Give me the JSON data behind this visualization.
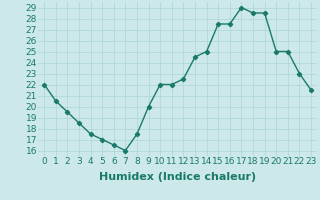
{
  "x": [
    0,
    1,
    2,
    3,
    4,
    5,
    6,
    7,
    8,
    9,
    10,
    11,
    12,
    13,
    14,
    15,
    16,
    17,
    18,
    19,
    20,
    21,
    22,
    23
  ],
  "y": [
    22,
    20.5,
    19.5,
    18.5,
    17.5,
    17.0,
    16.5,
    16.0,
    17.5,
    20.0,
    22.0,
    22.0,
    22.5,
    24.5,
    25.0,
    27.5,
    27.5,
    29.0,
    28.5,
    28.5,
    25.0,
    25.0,
    23.0,
    21.5
  ],
  "line_color": "#1a7a6a",
  "marker": "D",
  "marker_size": 2.2,
  "line_width": 1.0,
  "xlabel": "Humidex (Indice chaleur)",
  "xlim": [
    -0.5,
    23.5
  ],
  "ylim": [
    15.5,
    29.5
  ],
  "yticks": [
    16,
    17,
    18,
    19,
    20,
    21,
    22,
    23,
    24,
    25,
    26,
    27,
    28,
    29
  ],
  "xticks": [
    0,
    1,
    2,
    3,
    4,
    5,
    6,
    7,
    8,
    9,
    10,
    11,
    12,
    13,
    14,
    15,
    16,
    17,
    18,
    19,
    20,
    21,
    22,
    23
  ],
  "xtick_labels": [
    "0",
    "1",
    "2",
    "3",
    "4",
    "5",
    "6",
    "7",
    "8",
    "9",
    "10",
    "11",
    "12",
    "13",
    "14",
    "15",
    "16",
    "17",
    "18",
    "19",
    "20",
    "21",
    "22",
    "23"
  ],
  "bg_color": "#cce8e8",
  "grid_color": "#b0d8d8",
  "xlabel_fontsize": 8,
  "tick_fontsize": 6.5
}
